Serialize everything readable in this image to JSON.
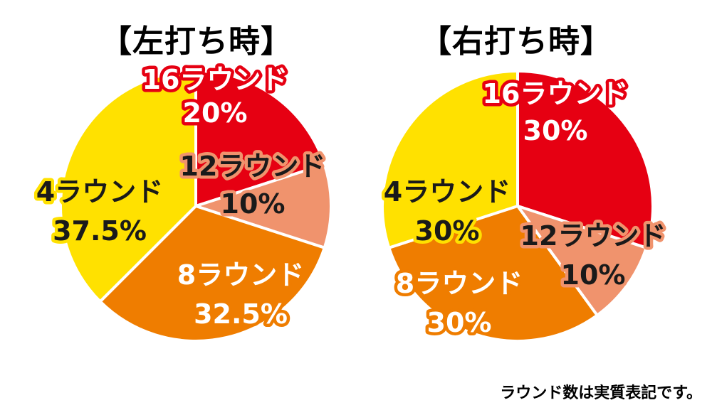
{
  "chart_data": [
    {
      "type": "pie",
      "title": "【左打ち時】",
      "slices": [
        {
          "label": "16ラウンド",
          "value": 20,
          "value_label": "20%",
          "color": "#e60012"
        },
        {
          "label": "12ラウンド",
          "value": 10,
          "value_label": "10%",
          "color": "#f0936d"
        },
        {
          "label": "8ラウンド",
          "value": 32.5,
          "value_label": "32.5%",
          "color": "#ef7d00"
        },
        {
          "label": "4ラウンド",
          "value": 37.5,
          "value_label": "37.5%",
          "color": "#ffe100"
        }
      ]
    },
    {
      "type": "pie",
      "title": "【右打ち時】",
      "slices": [
        {
          "label": "16ラウンド",
          "value": 30,
          "value_label": "30%",
          "color": "#e60012"
        },
        {
          "label": "12ラウンド",
          "value": 10,
          "value_label": "10%",
          "color": "#f0936d"
        },
        {
          "label": "8ラウンド",
          "value": 30,
          "value_label": "30%",
          "color": "#ef7d00"
        },
        {
          "label": "4ラウンド",
          "value": 30,
          "value_label": "30%",
          "color": "#ffe100"
        }
      ]
    }
  ],
  "footnote": "ラウンド数は実質表記です。"
}
